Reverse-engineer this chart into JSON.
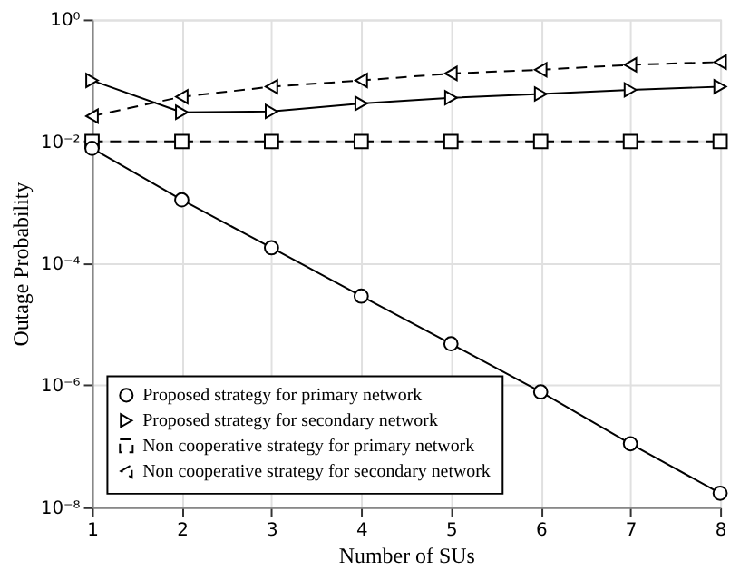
{
  "chart_data": {
    "type": "line",
    "xlabel": "Number of SUs",
    "ylabel": "Outage Probability",
    "x": [
      1,
      2,
      3,
      4,
      5,
      6,
      7,
      8
    ],
    "series": [
      {
        "name": "Proposed strategy for primary network",
        "color": "#000000",
        "marker": "circle",
        "line_style": "solid",
        "values": [
          0.0077,
          0.0011,
          0.00018,
          2.9e-05,
          4.8e-06,
          7.8e-07,
          1.1e-07,
          1.7e-08
        ]
      },
      {
        "name": "Proposed strategy for secondary network",
        "color": "#000000",
        "marker": "triangle-right",
        "line_style": "solid",
        "values": [
          0.1,
          0.03,
          0.031,
          0.042,
          0.052,
          0.06,
          0.07,
          0.079
        ]
      },
      {
        "name": "Non cooperative strategy for primary network",
        "color": "#000000",
        "marker": "square",
        "line_style": "dashed",
        "values": [
          0.01,
          0.01,
          0.01,
          0.01,
          0.01,
          0.01,
          0.01,
          0.01
        ]
      },
      {
        "name": "Non cooperative strategy for secondary network",
        "color": "#000000",
        "marker": "triangle-left",
        "line_style": "dashed",
        "values": [
          0.026,
          0.054,
          0.079,
          0.1,
          0.13,
          0.15,
          0.18,
          0.2
        ]
      }
    ],
    "xlim": [
      1,
      8
    ],
    "xticks": [
      1,
      2,
      3,
      4,
      5,
      6,
      7,
      8
    ],
    "ylim": [
      1e-08,
      1
    ],
    "yticks": [
      {
        "value": 1,
        "label": "10⁰"
      },
      {
        "value": 0.01,
        "label": "10⁻²"
      },
      {
        "value": 0.0001,
        "label": "10⁻⁴"
      },
      {
        "value": 1e-06,
        "label": "10⁻⁶"
      },
      {
        "value": 1e-08,
        "label": "10⁻⁸"
      }
    ],
    "log": "y",
    "grid": true,
    "legend": "bottom left"
  }
}
